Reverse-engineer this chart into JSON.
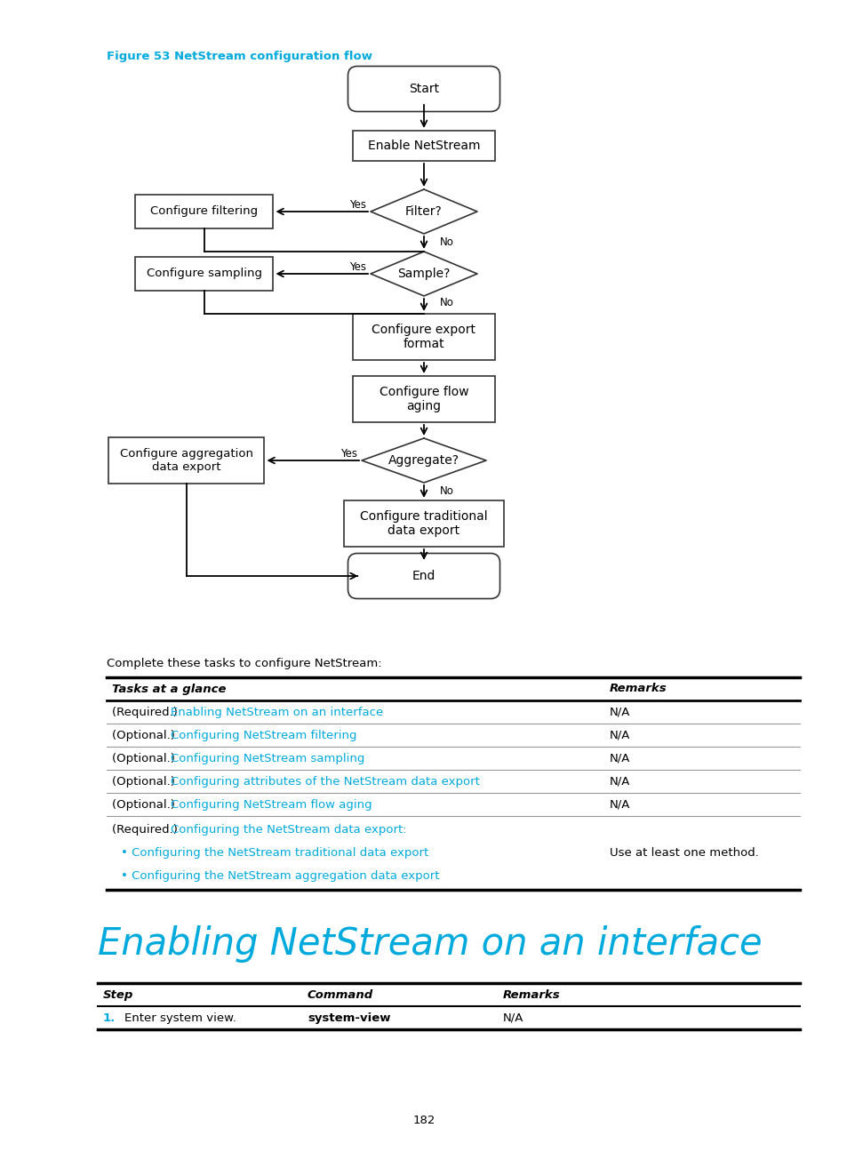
{
  "figure_label": "Figure 53 NetStream configuration flow",
  "figure_label_color": "#00AADD",
  "bg_color": "#FFFFFF",
  "link_color": "#00AADD",
  "text_color": "#000000",
  "table1_title": "Complete these tasks to configure NetStream:",
  "table1_header": [
    "Tasks at a glance",
    "Remarks"
  ],
  "table1_rows": [
    {
      "prefix": "(Required.) ",
      "link": "Enabling NetStream on an interface",
      "remarks": "N/A"
    },
    {
      "prefix": "(Optional.) ",
      "link": "Configuring NetStream filtering",
      "remarks": "N/A"
    },
    {
      "prefix": "(Optional.) ",
      "link": "Configuring NetStream sampling",
      "remarks": "N/A"
    },
    {
      "prefix": "(Optional.) ",
      "link": "Configuring attributes of the NetStream data export",
      "remarks": "N/A"
    },
    {
      "prefix": "(Optional.) ",
      "link": "Configuring NetStream flow aging",
      "remarks": "N/A"
    },
    {
      "prefix": "(Required.) ",
      "link": "Configuring the NetStream data export:",
      "remarks": "Use at least one method.",
      "bullets": [
        "Configuring the NetStream traditional data export",
        "Configuring the NetStream aggregation data export"
      ]
    }
  ],
  "section_title": "Enabling NetStream on an interface",
  "section_title_color": "#00AADD",
  "table2_header": [
    "Step",
    "Command",
    "Remarks"
  ],
  "table2_rows": [
    {
      "step_num": "1.",
      "step_desc": "Enter system view.",
      "command": "system-view",
      "remarks": "N/A"
    }
  ],
  "page_number": "182"
}
